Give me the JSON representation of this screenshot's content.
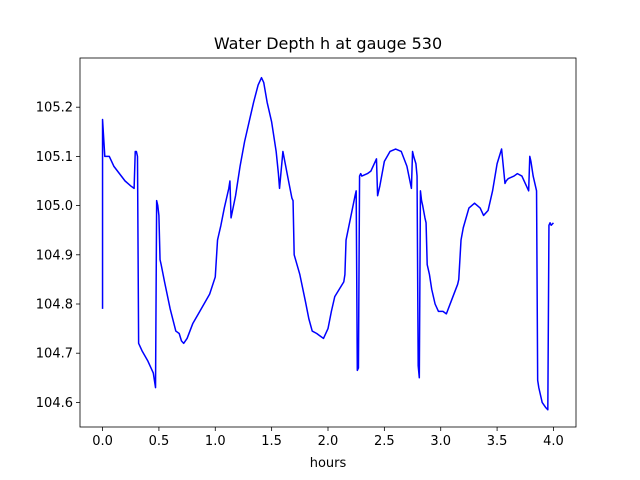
{
  "chart_data": {
    "type": "line",
    "title": "Water Depth h at gauge 530",
    "xlabel": "hours",
    "ylabel": "",
    "xlim": [
      -0.2,
      4.2
    ],
    "ylim": [
      104.55,
      105.3
    ],
    "xticks": [
      0.0,
      0.5,
      1.0,
      1.5,
      2.0,
      2.5,
      3.0,
      3.5,
      4.0
    ],
    "xtick_labels": [
      "0.0",
      "0.5",
      "1.0",
      "1.5",
      "2.0",
      "2.5",
      "3.0",
      "3.5",
      "4.0"
    ],
    "yticks": [
      104.6,
      104.7,
      104.8,
      104.9,
      105.0,
      105.1,
      105.2
    ],
    "ytick_labels": [
      "104.6",
      "104.7",
      "104.8",
      "104.9",
      "105.0",
      "105.1",
      "105.2"
    ],
    "grid": false,
    "series": [
      {
        "color": "#0000ff",
        "x": [
          0.0,
          0.0,
          0.02,
          0.06,
          0.1,
          0.15,
          0.2,
          0.25,
          0.28,
          0.29,
          0.3,
          0.31,
          0.32,
          0.35,
          0.4,
          0.45,
          0.47,
          0.48,
          0.49,
          0.5,
          0.51,
          0.52,
          0.55,
          0.6,
          0.65,
          0.68,
          0.7,
          0.72,
          0.75,
          0.8,
          0.85,
          0.9,
          0.95,
          1.0,
          1.02,
          1.03,
          1.05,
          1.08,
          1.12,
          1.13,
          1.14,
          1.18,
          1.22,
          1.26,
          1.3,
          1.34,
          1.38,
          1.41,
          1.43,
          1.46,
          1.5,
          1.54,
          1.56,
          1.57,
          1.6,
          1.65,
          1.68,
          1.69,
          1.7,
          1.75,
          1.8,
          1.83,
          1.86,
          1.9,
          1.93,
          1.96,
          2.0,
          2.03,
          2.06,
          2.1,
          2.14,
          2.15,
          2.16,
          2.2,
          2.24,
          2.25,
          2.26,
          2.27,
          2.28,
          2.29,
          2.3,
          2.35,
          2.38,
          2.42,
          2.43,
          2.44,
          2.46,
          2.5,
          2.55,
          2.6,
          2.65,
          2.7,
          2.74,
          2.75,
          2.76,
          2.78,
          2.79,
          2.8,
          2.81,
          2.82,
          2.83,
          2.84,
          2.86,
          2.87,
          2.88,
          2.89,
          2.9,
          2.92,
          2.95,
          2.98,
          3.02,
          3.05,
          3.1,
          3.15,
          3.16,
          3.18,
          3.2,
          3.25,
          3.3,
          3.35,
          3.38,
          3.42,
          3.46,
          3.5,
          3.54,
          3.57,
          3.58,
          3.6,
          3.65,
          3.68,
          3.72,
          3.78,
          3.79,
          3.8,
          3.82,
          3.85,
          3.86,
          3.87,
          3.9,
          3.93,
          3.95,
          3.96,
          3.97,
          3.98,
          4.0
        ],
        "y": [
          104.79,
          105.175,
          105.1,
          105.1,
          105.08,
          105.065,
          105.05,
          105.04,
          105.035,
          105.11,
          105.11,
          105.1,
          104.72,
          104.705,
          104.685,
          104.66,
          104.63,
          105.01,
          105.0,
          104.98,
          104.89,
          104.88,
          104.845,
          104.79,
          104.745,
          104.74,
          104.725,
          104.72,
          104.73,
          104.76,
          104.78,
          104.8,
          104.82,
          104.855,
          104.93,
          104.94,
          104.96,
          104.995,
          105.035,
          105.05,
          104.975,
          105.02,
          105.08,
          105.13,
          105.17,
          105.21,
          105.245,
          105.26,
          105.25,
          105.21,
          105.17,
          105.11,
          105.065,
          105.035,
          105.11,
          105.05,
          105.015,
          105.01,
          104.9,
          104.86,
          104.805,
          104.77,
          104.745,
          104.74,
          104.735,
          104.73,
          104.75,
          104.785,
          104.815,
          104.83,
          104.845,
          104.86,
          104.93,
          104.975,
          105.02,
          105.03,
          104.665,
          104.67,
          105.06,
          105.065,
          105.06,
          105.065,
          105.07,
          105.09,
          105.095,
          105.02,
          105.04,
          105.09,
          105.11,
          105.115,
          105.11,
          105.08,
          105.035,
          105.11,
          105.1,
          105.085,
          105.06,
          104.675,
          104.65,
          105.03,
          105.01,
          105.0,
          104.975,
          104.965,
          104.88,
          104.87,
          104.86,
          104.83,
          104.8,
          104.785,
          104.785,
          104.78,
          104.81,
          104.84,
          104.85,
          104.93,
          104.955,
          104.995,
          105.005,
          104.995,
          104.98,
          104.99,
          105.03,
          105.085,
          105.115,
          105.045,
          105.05,
          105.055,
          105.06,
          105.065,
          105.06,
          105.03,
          105.1,
          105.09,
          105.06,
          105.03,
          104.645,
          104.63,
          104.6,
          104.59,
          104.585,
          104.96,
          104.965,
          104.96,
          104.965
        ]
      }
    ]
  }
}
